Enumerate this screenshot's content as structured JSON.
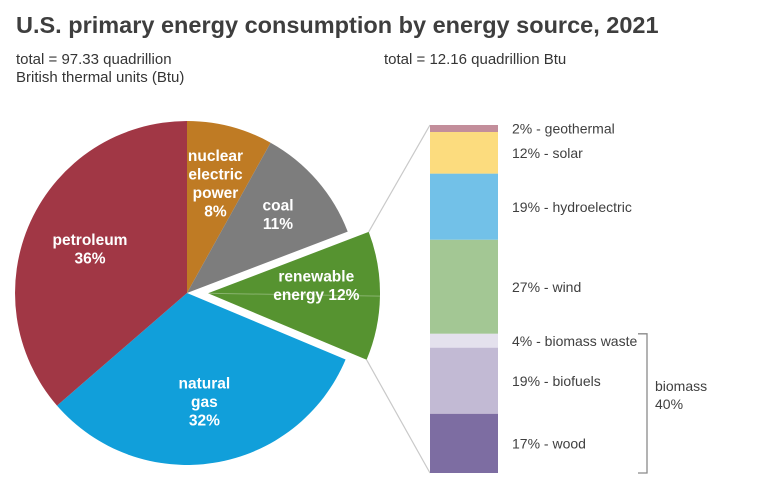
{
  "header": {
    "title": "U.S. primary energy consumption by energy source, 2021",
    "pie_total_line1": "total = 97.33 quadrillion",
    "pie_total_line2": "British thermal units (Btu)",
    "bar_total": "total = 12.16 quadrillion Btu"
  },
  "chart_data": [
    {
      "type": "pie",
      "title": "U.S. primary energy consumption by energy source, 2021",
      "total_label": "total = 97.33 quadrillion British thermal units (Btu)",
      "total_value_quadrillion_btu": 97.33,
      "units": "percent of total U.S. primary energy consumption",
      "start_angle_deg": 0,
      "clockwise": true,
      "slices": [
        {
          "name": "nuclear electric power",
          "pct": 8,
          "color": "#bf7b24",
          "label_lines": [
            "nuclear",
            "electric",
            "power",
            "8%"
          ],
          "label_r": 0.66
        },
        {
          "name": "coal",
          "pct": 11,
          "color": "#7d7d7d",
          "label_lines": [
            "coal",
            "11%"
          ],
          "label_r": 0.7
        },
        {
          "name": "renewable energy",
          "pct": 12,
          "color": "#569330",
          "label_lines": [
            "renewable",
            "energy 12%"
          ],
          "label_r": 0.63,
          "label_dy": -10,
          "exploded": true
        },
        {
          "name": "natural gas",
          "pct": 32,
          "color": "#119fda",
          "label_lines": [
            "natural",
            "gas",
            "32%"
          ],
          "label_r": 0.64
        },
        {
          "name": "petroleum",
          "pct": 36,
          "color": "#a13745",
          "label_lines": [
            "petroleum",
            "36%"
          ],
          "label_r": 0.62
        }
      ]
    },
    {
      "type": "bar",
      "subtype": "single-stacked-column",
      "total_label": "total = 12.16 quadrillion Btu",
      "total_value_quadrillion_btu": 12.16,
      "units": "percent of renewable energy total",
      "segments_top_to_bottom": [
        {
          "name": "geothermal",
          "pct": 2,
          "color": "#c38e9b",
          "label": "2% - geothermal"
        },
        {
          "name": "solar",
          "pct": 12,
          "color": "#fcdc7e",
          "label": "12% - solar"
        },
        {
          "name": "hydroelectric",
          "pct": 19,
          "color": "#72c1e8",
          "label": "19% - hydroelectric"
        },
        {
          "name": "wind",
          "pct": 27,
          "color": "#a3c794",
          "label": "27% - wind"
        },
        {
          "name": "biomass waste",
          "pct": 4,
          "color": "#e4e1ed",
          "label": "4% - biomass waste"
        },
        {
          "name": "biofuels",
          "pct": 19,
          "color": "#c2bad4",
          "label": "19% - biofuels"
        },
        {
          "name": "wood",
          "pct": 17,
          "color": "#7d6da2",
          "label": "17% - wood"
        }
      ],
      "bracket": {
        "label_lines": [
          "biomass",
          "40%"
        ],
        "pct": 40,
        "covers": [
          "biomass waste",
          "biofuels",
          "wood"
        ],
        "side": "right"
      }
    }
  ],
  "colors": {
    "background": "#ffffff",
    "title_text": "#3e3e3e",
    "body_text": "#3f3f3f",
    "pie_label_text": "#ffffff",
    "connector_line": "#c9c9c9",
    "bracket_line": "#8a8a8a"
  }
}
